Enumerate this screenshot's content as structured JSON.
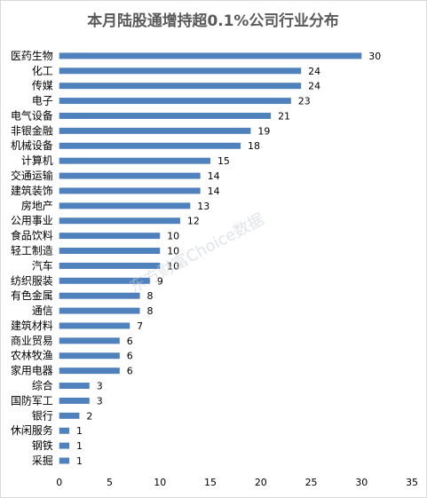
{
  "chart_data": {
    "type": "bar",
    "orientation": "horizontal",
    "title": "本月陆股通增持超0.1%公司行业分布",
    "categories": [
      "医药生物",
      "化工",
      "传媒",
      "电子",
      "电气设备",
      "非银金融",
      "机械设备",
      "计算机",
      "交通运输",
      "建筑装饰",
      "房地产",
      "公用事业",
      "食品饮料",
      "轻工制造",
      "汽车",
      "纺织服装",
      "有色金属",
      "通信",
      "建筑材料",
      "商业贸易",
      "农林牧渔",
      "家用电器",
      "综合",
      "国防军工",
      "银行",
      "休闲服务",
      "钢铁",
      "采掘"
    ],
    "values": [
      30,
      24,
      24,
      23,
      21,
      19,
      18,
      15,
      14,
      14,
      13,
      12,
      10,
      10,
      10,
      9,
      8,
      8,
      7,
      6,
      6,
      6,
      3,
      3,
      2,
      1,
      1,
      1
    ],
    "xlim": [
      0,
      35
    ],
    "xticks": [
      0,
      5,
      10,
      15,
      20,
      25,
      30,
      35
    ],
    "grid": false,
    "legend": "none",
    "bar_color": "#4f81bd",
    "xlabel": "",
    "ylabel": ""
  },
  "watermark": "东方财富Choice数据"
}
